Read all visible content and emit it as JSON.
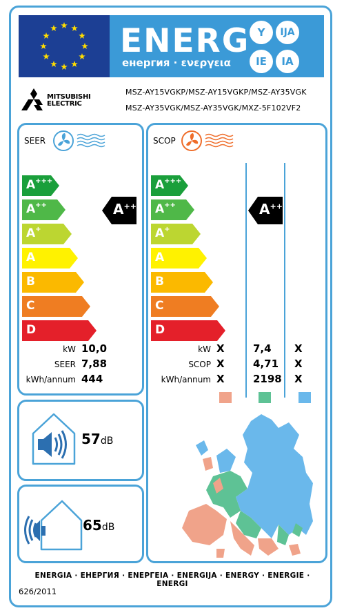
{
  "header": {
    "energy_word": "ENERG",
    "subtitle": "енергия · ενεργεια",
    "suffixes": [
      "Y",
      "IJA",
      "IE",
      "IA"
    ]
  },
  "brand": {
    "line1": "MITSUBISHI",
    "line2": "ELECTRIC"
  },
  "models": {
    "line1": "MSZ-AY15VGKP/MSZ-AY15VGKP/MSZ-AY35VGK",
    "line2": "MSZ-AY35VGK/MSZ-AY35VGK/MXZ-5F102VF2"
  },
  "classes": [
    {
      "letter": "A",
      "plus": "+++",
      "color": "#1a9f3b"
    },
    {
      "letter": "A",
      "plus": "++",
      "color": "#4fb848"
    },
    {
      "letter": "A",
      "plus": "+",
      "color": "#bcd631"
    },
    {
      "letter": "A",
      "plus": "",
      "color": "#fff200"
    },
    {
      "letter": "B",
      "plus": "",
      "color": "#fbb900"
    },
    {
      "letter": "C",
      "plus": "",
      "color": "#ef7d22"
    },
    {
      "letter": "D",
      "plus": "",
      "color": "#e4202a"
    }
  ],
  "seer": {
    "title": "SEER",
    "rating_letter": "A",
    "rating_plus": "++",
    "rows": [
      {
        "label": "kW",
        "value": "10,0"
      },
      {
        "label": "SEER",
        "value": "7,88"
      },
      {
        "label": "kWh/annum",
        "value": "444"
      }
    ]
  },
  "scop": {
    "title": "SCOP",
    "rating_letter": "A",
    "rating_plus": "++",
    "rows": [
      {
        "label": "kW",
        "v1": "X",
        "v2": "7,4",
        "v3": "X"
      },
      {
        "label": "SCOP",
        "v1": "X",
        "v2": "4,71",
        "v3": "X"
      },
      {
        "label": "kWh/annum",
        "v1": "X",
        "v2": "2198",
        "v3": "X"
      }
    ],
    "zone_colors": [
      "#f0a38a",
      "#5ec295",
      "#6ab8eb"
    ]
  },
  "noise": {
    "indoor_value": "57",
    "indoor_unit": "dB",
    "outdoor_value": "65",
    "outdoor_unit": "dB"
  },
  "footer": {
    "languages": "ENERGIA · ЕНЕРГИЯ · ΕΝΕΡΓΕΙΑ · ENERGIJA · ENERGY · ENERGIE · ENERGI",
    "regulation": "626/2011"
  },
  "colors": {
    "frame_blue": "#4aa3d8",
    "eu_blue": "#1c3f94",
    "header_blue": "#3b9ad7",
    "eu_star": "#ffdd00"
  }
}
